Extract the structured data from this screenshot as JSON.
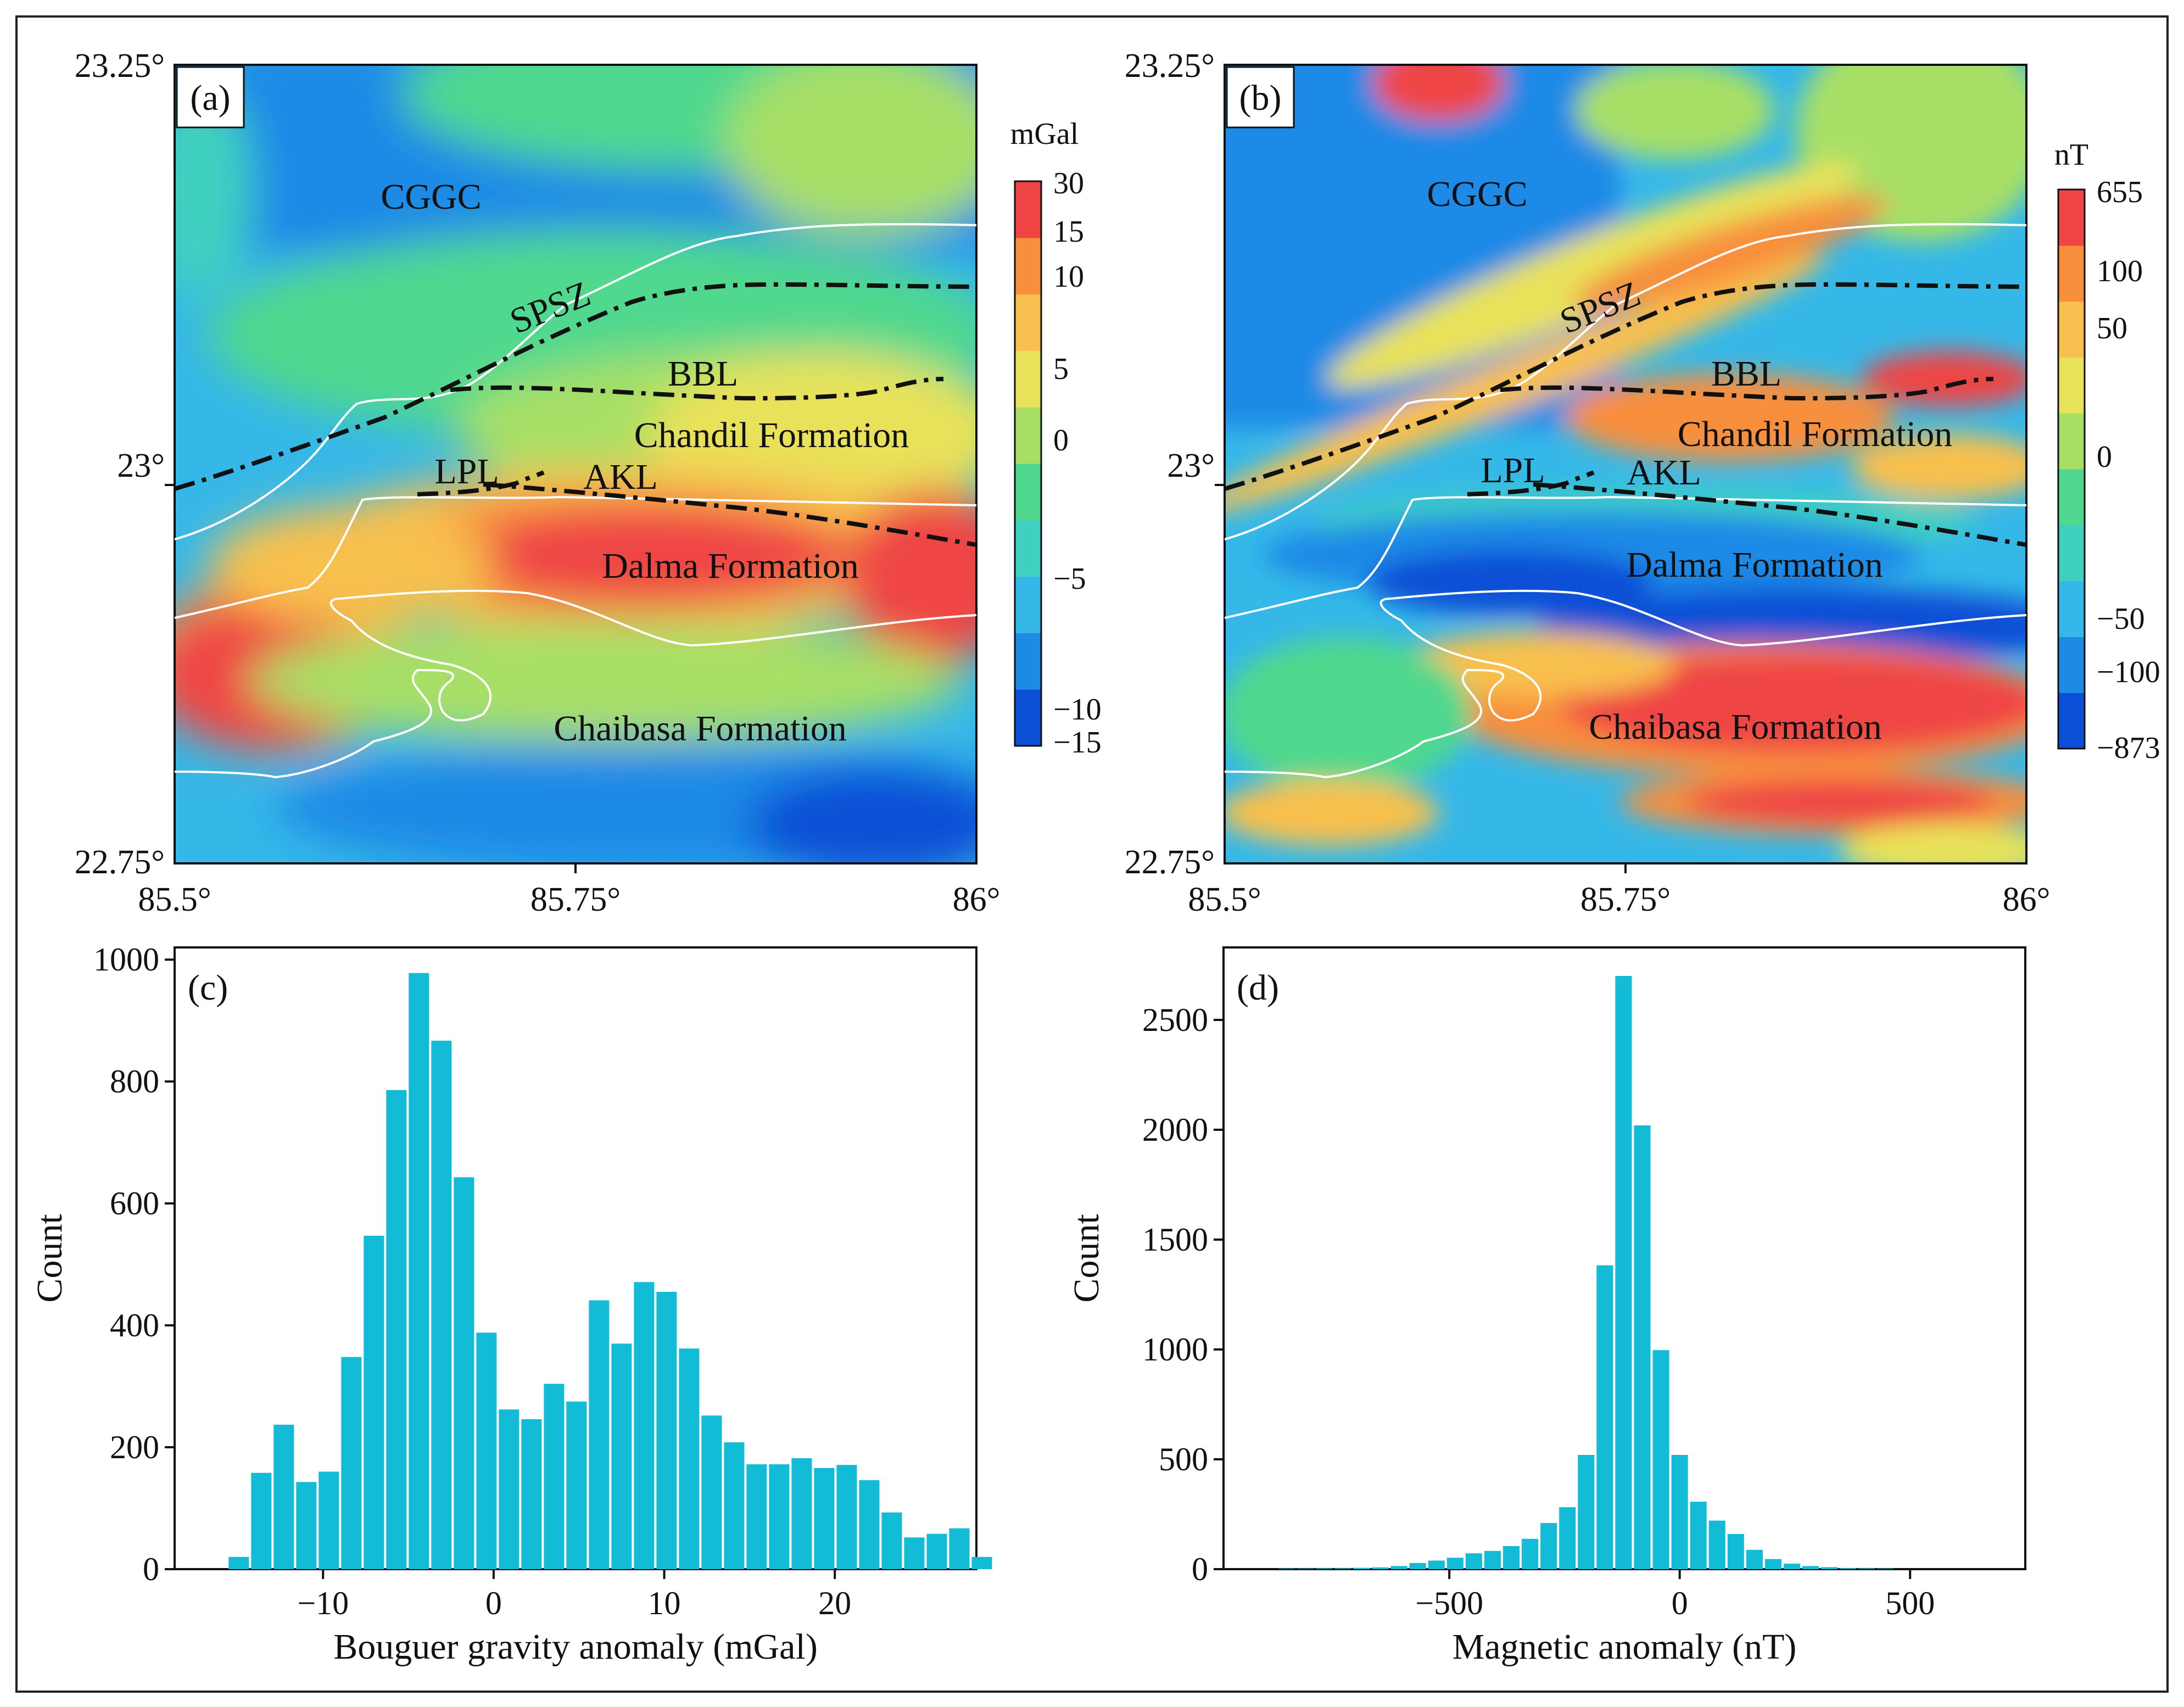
{
  "chart_data": [
    {
      "panel": "(a)",
      "type": "heatmap",
      "xlim": [
        85.5,
        86.0
      ],
      "ylim": [
        22.75,
        23.25
      ],
      "x_ticks": [
        "85.5°",
        "85.75°",
        "86°"
      ],
      "y_ticks": [
        "23.25°",
        "23°",
        "22.75°"
      ],
      "colorbar": {
        "unit": "mGal",
        "ticks": [
          "30",
          "15",
          "10",
          "5",
          "0",
          "−5",
          "−10",
          "−15"
        ],
        "colors": [
          "#0a4fd6",
          "#1d8ae6",
          "#35b8e8",
          "#3fd0c0",
          "#4fd88e",
          "#a7df66",
          "#e8e25a",
          "#f8c04e",
          "#f88f3c",
          "#ef4444"
        ]
      },
      "labels": {
        "cggc": "CGGC",
        "spsz": "SPSZ",
        "bbl": "BBL",
        "chandil": "Chandil Formation",
        "lpl": "LPL",
        "akl": "AKL",
        "dalma": "Dalma Formation",
        "chaibasa": "Chaibasa Formation"
      }
    },
    {
      "panel": "(b)",
      "type": "heatmap",
      "xlim": [
        85.5,
        86.0
      ],
      "ylim": [
        22.75,
        23.25
      ],
      "x_ticks": [
        "85.5°",
        "85.75°",
        "86°"
      ],
      "y_ticks": [
        "23.25°",
        "23°",
        "22.75°"
      ],
      "colorbar": {
        "unit": "nT",
        "ticks": [
          "655",
          "100",
          "50",
          "0",
          "−50",
          "−100",
          "−873"
        ],
        "colors": [
          "#0a4fd6",
          "#1d8ae6",
          "#35b8e8",
          "#3fd0c0",
          "#4fd88e",
          "#a7df66",
          "#e8e25a",
          "#f8c04e",
          "#f88f3c",
          "#ef4444"
        ]
      },
      "labels": {
        "cggc": "CGGC",
        "spsz": "SPSZ",
        "bbl": "BBL",
        "chandil": "Chandil Formation",
        "lpl": "LPL",
        "akl": "AKL",
        "dalma": "Dalma Formation",
        "chaibasa": "Chaibasa Formation"
      }
    },
    {
      "panel": "(c)",
      "type": "bar",
      "title": "",
      "xlabel": "Bouguer gravity anomaly (mGal)",
      "ylabel": "Count",
      "xlim": [
        -18.7,
        28.3
      ],
      "ylim": [
        0,
        1020
      ],
      "x_ticks": [
        -10,
        0,
        10,
        20
      ],
      "y_ticks": [
        0,
        200,
        400,
        600,
        800,
        1000
      ],
      "bin_start": -15.6,
      "bin_width": 1.32,
      "values": [
        20,
        158,
        237,
        143,
        160,
        348,
        547,
        786,
        978,
        867,
        643,
        388,
        262,
        246,
        304,
        275,
        441,
        370,
        471,
        455,
        362,
        252,
        208,
        172,
        172,
        182,
        166,
        171,
        146,
        93,
        52,
        58,
        67,
        20
      ],
      "color": "#13bcd6"
    },
    {
      "panel": "(d)",
      "type": "bar",
      "title": "",
      "xlabel": "Magnetic anomaly (nT)",
      "ylabel": "Count",
      "xlim": [
        -990,
        750
      ],
      "ylim": [
        0,
        2830
      ],
      "x_ticks": [
        -500,
        0,
        500
      ],
      "y_ticks": [
        0,
        500,
        1000,
        1500,
        2000,
        2500
      ],
      "bin_start": -873,
      "bin_width": 40.6,
      "values": [
        2,
        2,
        3,
        3,
        6,
        8,
        14,
        28,
        39,
        52,
        72,
        83,
        105,
        138,
        210,
        282,
        520,
        1383,
        2700,
        2020,
        997,
        520,
        307,
        221,
        160,
        88,
        46,
        25,
        14,
        9,
        4,
        3,
        2
      ],
      "color": "#13bcd6"
    }
  ]
}
